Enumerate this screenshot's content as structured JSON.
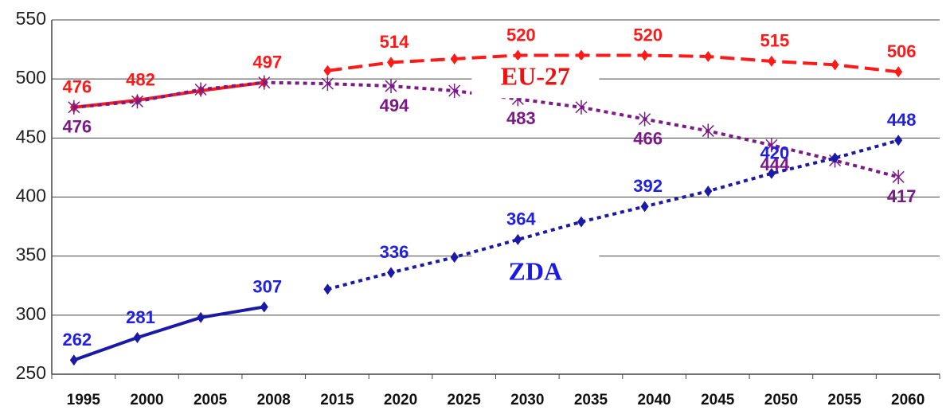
{
  "chart_data": {
    "type": "line",
    "categories": [
      "1995",
      "2000",
      "2005",
      "2008",
      "2015",
      "2020",
      "2025",
      "2030",
      "2035",
      "2040",
      "2045",
      "2050",
      "2055",
      "2060"
    ],
    "series": [
      {
        "name": "EU-27",
        "color": "#ff1a1a",
        "marker": "diamond",
        "style": "dashed",
        "solid_until": "2008",
        "label_side": "above",
        "values": [
          476,
          482,
          490,
          497,
          507,
          514,
          517,
          520,
          520,
          520,
          519,
          515,
          512,
          506
        ],
        "value_labels": [
          "476",
          "482",
          null,
          "497",
          null,
          "514",
          null,
          "520",
          null,
          "520",
          null,
          "515",
          null,
          "506"
        ]
      },
      {
        "color": "#7a1a86",
        "marker": "asterisk",
        "style": "dotted",
        "label_side": "below",
        "values": [
          476,
          481,
          491,
          497,
          496,
          494,
          490,
          483,
          476,
          466,
          456,
          444,
          431,
          417
        ],
        "value_labels": [
          "476",
          null,
          null,
          null,
          null,
          "494",
          null,
          "483",
          null,
          "466",
          null,
          "444",
          null,
          "417"
        ]
      },
      {
        "name": "ZDA",
        "color": "#1a1aa6",
        "marker": "diamond",
        "style": "dotted",
        "solid_until": "2008",
        "label_side": "above",
        "label_color": "#2020e0",
        "values": [
          262,
          281,
          298,
          307,
          322,
          336,
          349,
          364,
          379,
          392,
          405,
          420,
          433,
          448
        ],
        "value_labels": [
          "262",
          "281",
          null,
          "307",
          null,
          "336",
          null,
          "364",
          null,
          "392",
          null,
          "420",
          null,
          "448"
        ]
      }
    ],
    "annotations": [
      {
        "text": "EU-27",
        "color": "#ee1111",
        "at": [
          "2030",
          500
        ]
      },
      {
        "text": "ZDA",
        "color": "#1a1ae0",
        "at": [
          "2030",
          335
        ]
      }
    ],
    "ylim": [
      250,
      550
    ],
    "yticks": [
      250,
      300,
      350,
      400,
      450,
      500,
      550
    ],
    "grid": true
  }
}
